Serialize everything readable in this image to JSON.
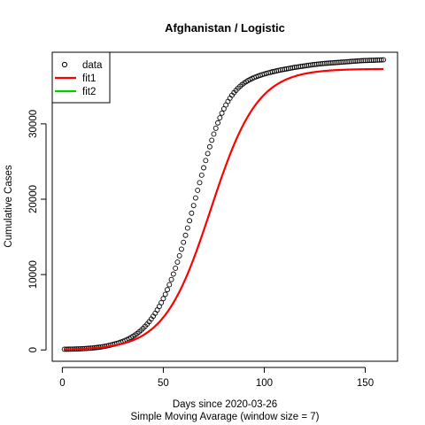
{
  "chart_data": {
    "type": "scatter",
    "title": "Afghanistan / Logistic",
    "xlabel": "Days since 2020-03-26",
    "sublabel": "Simple Moving Avarage (window size = 7)",
    "ylabel": "Cumulative Cases",
    "xlim": [
      -5,
      166
    ],
    "ylim": [
      -1500,
      39500
    ],
    "xticks": [
      0,
      50,
      100,
      150
    ],
    "yticks": [
      0,
      10000,
      20000,
      30000
    ],
    "grid": false,
    "legend_position": "top-left",
    "legend": [
      {
        "label": "data",
        "style": "open-circle",
        "color": "#000000"
      },
      {
        "label": "fit1",
        "style": "line",
        "color": "#ff0000"
      },
      {
        "label": "fit2",
        "style": "line",
        "color": "#00cd00"
      }
    ],
    "series": [
      {
        "name": "data",
        "style": "points",
        "color": "#000000",
        "x": [
          1,
          2,
          3,
          4,
          5,
          6,
          7,
          8,
          9,
          10,
          11,
          12,
          13,
          14,
          15,
          16,
          17,
          18,
          19,
          20,
          21,
          22,
          23,
          24,
          25,
          26,
          27,
          28,
          29,
          30,
          31,
          32,
          33,
          34,
          35,
          36,
          37,
          38,
          39,
          40,
          41,
          42,
          43,
          44,
          45,
          46,
          47,
          48,
          49,
          50,
          51,
          52,
          53,
          54,
          55,
          56,
          57,
          58,
          59,
          60,
          61,
          62,
          63,
          64,
          65,
          66,
          67,
          68,
          69,
          70,
          71,
          72,
          73,
          74,
          75,
          76,
          77,
          78,
          79,
          80,
          81,
          82,
          83,
          84,
          85,
          86,
          87,
          88,
          89,
          90,
          91,
          92,
          93,
          94,
          95,
          96,
          97,
          98,
          99,
          100,
          101,
          102,
          103,
          104,
          105,
          106,
          107,
          108,
          109,
          110,
          111,
          112,
          113,
          114,
          115,
          116,
          117,
          118,
          119,
          120,
          121,
          122,
          123,
          124,
          125,
          126,
          127,
          128,
          129,
          130,
          131,
          132,
          133,
          134,
          135,
          136,
          137,
          138,
          139,
          140,
          141,
          142,
          143,
          144,
          145,
          146,
          147,
          148,
          149,
          150,
          151,
          152,
          153,
          154,
          155,
          156,
          157,
          158,
          159
        ],
        "y": [
          90,
          95,
          100,
          105,
          110,
          120,
          130,
          140,
          150,
          165,
          180,
          200,
          220,
          240,
          260,
          290,
          320,
          350,
          390,
          430,
          480,
          530,
          590,
          650,
          720,
          790,
          870,
          950,
          1040,
          1140,
          1250,
          1370,
          1500,
          1650,
          1810,
          1990,
          2180,
          2390,
          2620,
          2870,
          3140,
          3430,
          3750,
          4100,
          4470,
          4870,
          5300,
          5770,
          6270,
          6810,
          7380,
          8000,
          8650,
          9340,
          10070,
          10840,
          11650,
          12490,
          13370,
          14280,
          15210,
          16170,
          17150,
          18150,
          19160,
          20170,
          21180,
          22190,
          23190,
          24170,
          25130,
          26060,
          26960,
          27820,
          28640,
          29410,
          30130,
          30800,
          31420,
          31990,
          32500,
          32970,
          33400,
          33790,
          34140,
          34450,
          34730,
          34980,
          35210,
          35410,
          35590,
          35750,
          35890,
          36020,
          36140,
          36250,
          36350,
          36440,
          36530,
          36610,
          36690,
          36760,
          36830,
          36900,
          36960,
          37020,
          37080,
          37140,
          37190,
          37240,
          37290,
          37340,
          37390,
          37440,
          37490,
          37530,
          37570,
          37610,
          37650,
          37690,
          37730,
          37770,
          37810,
          37850,
          37880,
          37910,
          37940,
          37970,
          38000,
          38020,
          38040,
          38060,
          38080,
          38100,
          38120,
          38140,
          38160,
          38180,
          38200,
          38220,
          38240,
          38260,
          38280,
          38300,
          38320,
          38340,
          38360,
          38380,
          38390,
          38400,
          38410,
          38420,
          38430,
          38440,
          38450,
          38460,
          38470,
          38480,
          38490
        ]
      },
      {
        "name": "fit1",
        "style": "line",
        "color": "#ff0000",
        "model": "logistic",
        "params": {
          "K": 37300,
          "r": 0.0865,
          "t0": 73.5
        },
        "x_range": [
          1,
          159
        ]
      }
    ]
  }
}
